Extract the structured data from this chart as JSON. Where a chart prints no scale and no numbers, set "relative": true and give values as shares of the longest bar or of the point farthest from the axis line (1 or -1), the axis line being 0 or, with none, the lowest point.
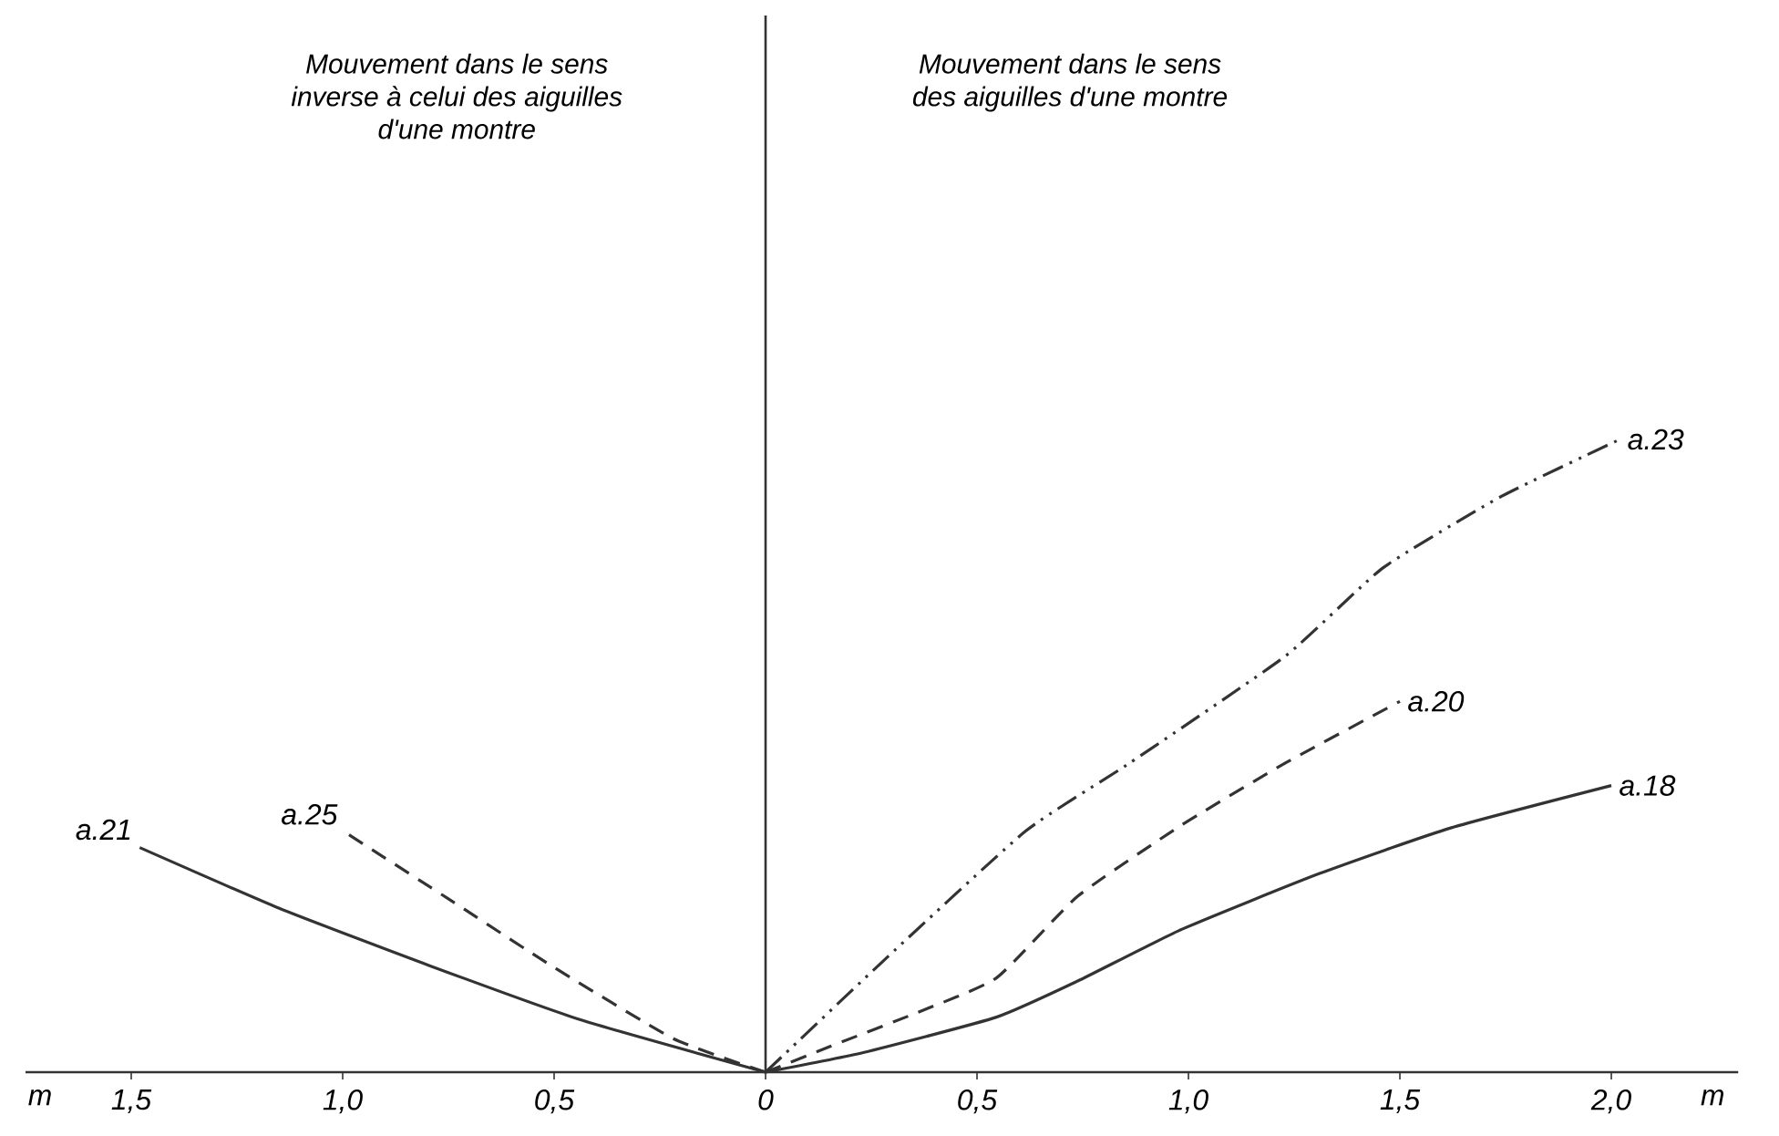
{
  "chart_data": {
    "type": "line",
    "relative": true,
    "xlabel": "m",
    "xlim": [
      -1.75,
      2.3
    ],
    "xticks": [
      {
        "value": -1.5,
        "label": "1,5"
      },
      {
        "value": -1.0,
        "label": "1,0"
      },
      {
        "value": -0.5,
        "label": "0,5"
      },
      0,
      {
        "value": 0.5,
        "label": "0,5"
      },
      {
        "value": 1.0,
        "label": "1,0"
      },
      {
        "value": 1.5,
        "label": "1,5"
      },
      {
        "value": 2.0,
        "label": "2,0"
      }
    ],
    "annotations": [
      {
        "text": "Mouvement dans le sens inverse à celui des aiguilles d'une montre"
      },
      {
        "text": "Mouvement dans le sens des aiguilles d'une montre"
      }
    ],
    "marker": "none",
    "series": [
      {
        "name": "a.21",
        "color": "#333333",
        "line_style": "solid",
        "x": [
          0,
          -0.434,
          -0.793,
          -1.15,
          -1.48
        ],
        "values": [
          0,
          0.082,
          0.168,
          0.259,
          0.355
        ]
      },
      {
        "name": "a.25",
        "color": "#333333",
        "line_style": "dashed",
        "x": [
          0,
          -0.218,
          -0.506,
          -0.75,
          -0.994
        ],
        "values": [
          0,
          0.053,
          0.168,
          0.274,
          0.379
        ]
      },
      {
        "name": "a.23",
        "color": "#333333",
        "line_style": "dashdotdotted",
        "x": [
          0,
          0.277,
          0.615,
          0.862,
          1.23,
          1.46,
          1.74,
          2.02
        ],
        "values": [
          0,
          0.175,
          0.381,
          0.489,
          0.658,
          0.797,
          0.91,
          1.0
        ]
      },
      {
        "name": "a.20",
        "color": "#333333",
        "line_style": "dashed",
        "x": [
          0,
          0.154,
          0.354,
          0.546,
          0.738,
          0.985,
          1.23,
          1.5
        ],
        "values": [
          0,
          0.041,
          0.093,
          0.149,
          0.278,
          0.391,
          0.489,
          0.586
        ]
      },
      {
        "name": "a.18",
        "color": "#333333",
        "line_style": "solid",
        "x": [
          0,
          0.231,
          0.546,
          0.738,
          0.985,
          1.31,
          1.62,
          2.0
        ],
        "values": [
          0,
          0.031,
          0.087,
          0.144,
          0.226,
          0.314,
          0.386,
          0.453
        ]
      }
    ]
  }
}
